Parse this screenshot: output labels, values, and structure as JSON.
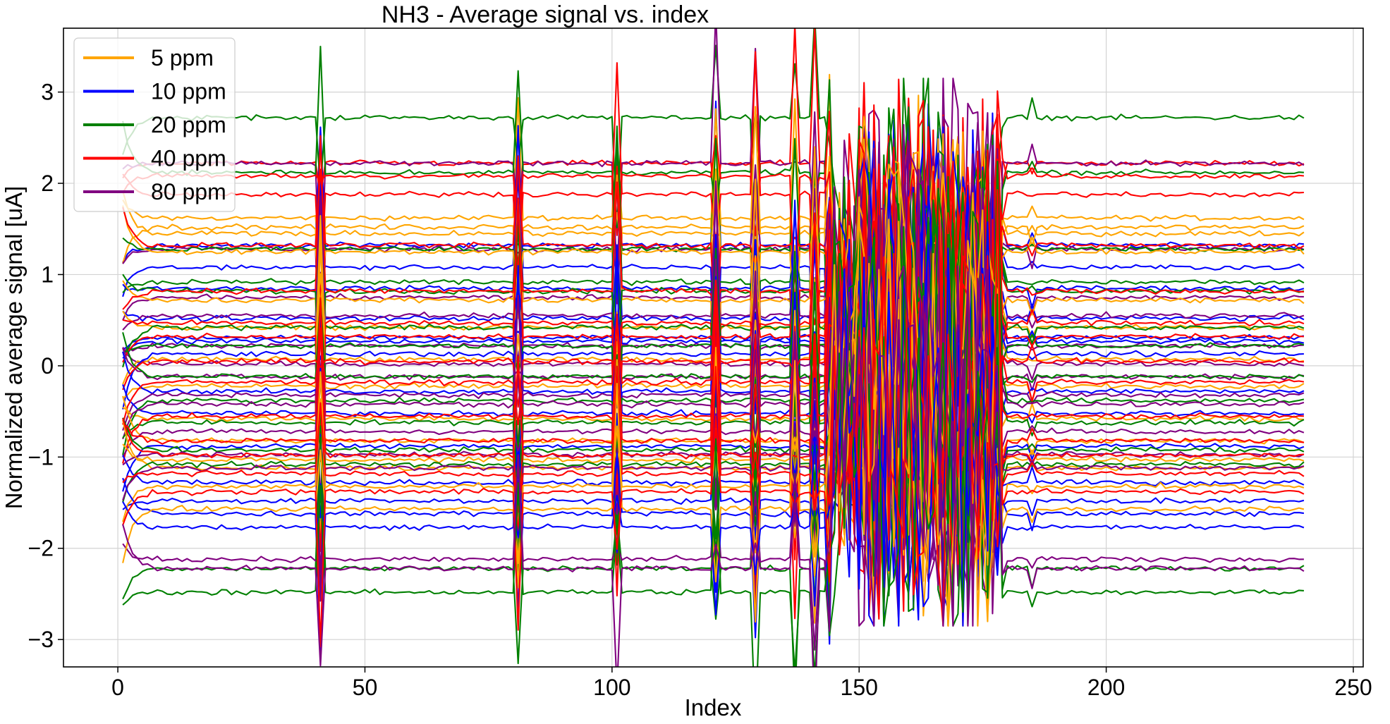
{
  "chart_data": {
    "type": "line",
    "title": "NH3 - Average signal vs. index",
    "xlabel": "Index",
    "ylabel": "Normalized average signal [uA]",
    "xlim": [
      -11,
      252
    ],
    "ylim": [
      -3.3,
      3.7
    ],
    "xticks": [
      0,
      50,
      100,
      150,
      200,
      250
    ],
    "yticks": [
      -3,
      -2,
      -1,
      0,
      1,
      2,
      3
    ],
    "grid": true,
    "legend_position": "top-left",
    "x_range": [
      1,
      240
    ],
    "disturbance_indices": [
      41,
      81,
      101,
      121,
      129,
      137,
      141,
      144
    ],
    "noisy_region": [
      145,
      178
    ],
    "series": [
      {
        "name": "5 ppm",
        "color": "#FFA500",
        "levels": [
          1.62,
          1.52,
          1.45,
          1.25,
          0.72,
          0.42,
          0.07,
          -0.22,
          -0.58,
          -0.82,
          -1.03,
          -1.12,
          -1.32,
          -1.57
        ]
      },
      {
        "name": "10 ppm",
        "color": "#0000FF",
        "levels": [
          1.32,
          1.08,
          0.85,
          0.52,
          0.31,
          0.27,
          0.13,
          -0.28,
          -0.52,
          -0.88,
          -1.28,
          -1.48,
          -1.62,
          -1.77
        ]
      },
      {
        "name": "20 ppm",
        "color": "#008000",
        "levels": [
          2.72,
          2.12,
          1.28,
          0.92,
          0.82,
          0.42,
          0.22,
          -0.12,
          -0.38,
          -0.62,
          -0.92,
          -1.08,
          -2.22,
          -2.48
        ]
      },
      {
        "name": "40 ppm",
        "color": "#FF0000",
        "levels": [
          2.22,
          2.08,
          1.88,
          1.32,
          0.82,
          0.47,
          0.32,
          0.05,
          -0.18,
          -0.55,
          -0.82,
          -0.98,
          -1.18,
          -1.38
        ]
      },
      {
        "name": "80 ppm",
        "color": "#800080",
        "levels": [
          2.22,
          1.28,
          0.75,
          0.55,
          0.22,
          0.02,
          -0.12,
          -0.32,
          -0.42,
          -0.72,
          -0.97,
          -1.12,
          -2.12,
          -2.22
        ]
      }
    ]
  }
}
